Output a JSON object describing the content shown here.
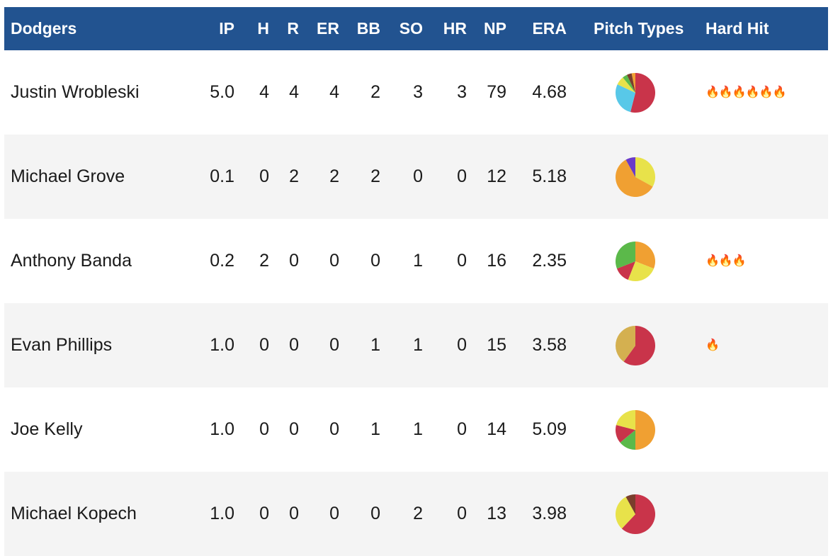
{
  "header": {
    "team": "Dodgers",
    "columns": [
      "IP",
      "H",
      "R",
      "ER",
      "BB",
      "SO",
      "HR",
      "NP",
      "ERA",
      "Pitch Types",
      "Hard Hit"
    ]
  },
  "pitchers": [
    {
      "name": "Justin Wrobleski",
      "stats": [
        "5.0",
        "4",
        "4",
        "4",
        "2",
        "3",
        "3",
        "79",
        "4.68"
      ],
      "hard_hit": "🔥🔥🔥🔥🔥🔥",
      "pitch_mix": [
        {
          "color": "#c9344a",
          "value": 0.54
        },
        {
          "color": "#58c8e8",
          "value": 0.28
        },
        {
          "color": "#e8e24a",
          "value": 0.07
        },
        {
          "color": "#5bb94a",
          "value": 0.04
        },
        {
          "color": "#7a3e2c",
          "value": 0.04
        },
        {
          "color": "#f0a032",
          "value": 0.03
        }
      ]
    },
    {
      "name": "Michael Grove",
      "stats": [
        "0.1",
        "0",
        "2",
        "2",
        "2",
        "0",
        "0",
        "12",
        "5.18"
      ],
      "hard_hit": "",
      "pitch_mix": [
        {
          "color": "#e8e24a",
          "value": 0.33
        },
        {
          "color": "#f0a032",
          "value": 0.59
        },
        {
          "color": "#6a3bc9",
          "value": 0.08
        }
      ]
    },
    {
      "name": "Anthony Banda",
      "stats": [
        "0.2",
        "2",
        "0",
        "0",
        "0",
        "1",
        "0",
        "16",
        "2.35"
      ],
      "hard_hit": "🔥🔥🔥",
      "pitch_mix": [
        {
          "color": "#f0a032",
          "value": 0.31
        },
        {
          "color": "#e8e24a",
          "value": 0.25
        },
        {
          "color": "#c9344a",
          "value": 0.13
        },
        {
          "color": "#5bb94a",
          "value": 0.31
        }
      ]
    },
    {
      "name": "Evan Phillips",
      "stats": [
        "1.0",
        "0",
        "0",
        "0",
        "1",
        "1",
        "0",
        "15",
        "3.58"
      ],
      "hard_hit": "🔥",
      "pitch_mix": [
        {
          "color": "#c9344a",
          "value": 0.6
        },
        {
          "color": "#d4b050",
          "value": 0.4
        }
      ]
    },
    {
      "name": "Joe Kelly",
      "stats": [
        "1.0",
        "0",
        "0",
        "0",
        "1",
        "1",
        "0",
        "14",
        "5.09"
      ],
      "hard_hit": "",
      "pitch_mix": [
        {
          "color": "#f0a032",
          "value": 0.5
        },
        {
          "color": "#5bb94a",
          "value": 0.14
        },
        {
          "color": "#c9344a",
          "value": 0.15
        },
        {
          "color": "#e8e24a",
          "value": 0.21
        }
      ]
    },
    {
      "name": "Michael Kopech",
      "stats": [
        "1.0",
        "0",
        "0",
        "0",
        "0",
        "2",
        "0",
        "13",
        "3.98"
      ],
      "hard_hit": "",
      "pitch_mix": [
        {
          "color": "#c9344a",
          "value": 0.62
        },
        {
          "color": "#e8e24a",
          "value": 0.3
        },
        {
          "color": "#7a3e2c",
          "value": 0.08
        }
      ]
    }
  ]
}
